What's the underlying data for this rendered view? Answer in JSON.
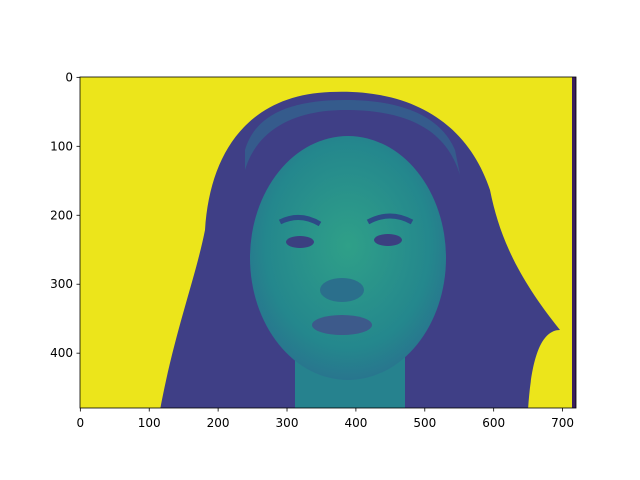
{
  "chart_data": {
    "type": "image",
    "xlim": [
      -0.5,
      719.5
    ],
    "ylim": [
      479.5,
      -0.5
    ],
    "xticks": [
      0,
      100,
      200,
      300,
      400,
      500,
      600,
      700
    ],
    "yticks": [
      0,
      100,
      200,
      300,
      400
    ]
  }
}
